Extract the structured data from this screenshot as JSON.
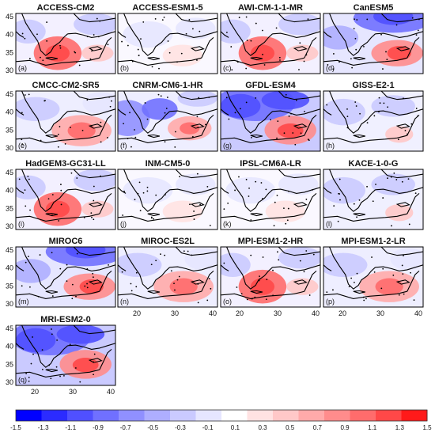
{
  "panels": [
    {
      "title": "ACCESS-CM2",
      "label": "(a)",
      "style": "warm-center"
    },
    {
      "title": "ACCESS-ESM1-5",
      "label": "(b)",
      "style": "neutral"
    },
    {
      "title": "AWI-CM-1-1-MR",
      "label": "(c)",
      "style": "warm-center"
    },
    {
      "title": "CanESM5",
      "label": "(d)",
      "style": "blue-north"
    },
    {
      "title": "CMCC-CM2-SR5",
      "label": "(e)",
      "style": "warm-east"
    },
    {
      "title": "CNRM-CM6-1-HR",
      "label": "(f)",
      "style": "blue-west"
    },
    {
      "title": "GFDL-ESM4",
      "label": "(g)",
      "style": "blue-strong"
    },
    {
      "title": "GISS-E2-1",
      "label": "(h)",
      "style": "light-blue"
    },
    {
      "title": "HadGEM3-GC31-LL",
      "label": "(i)",
      "style": "warm-center"
    },
    {
      "title": "INM-CM5-0",
      "label": "(j)",
      "style": "neutral"
    },
    {
      "title": "IPSL-CM6A-LR",
      "label": "(k)",
      "style": "neutral"
    },
    {
      "title": "KACE-1-0-G",
      "label": "(l)",
      "style": "light-blue"
    },
    {
      "title": "MIROC6",
      "label": "(m)",
      "style": "blue-north"
    },
    {
      "title": "MIROC-ES2L",
      "label": "(n)",
      "style": "warm-east"
    },
    {
      "title": "MPI-ESM1-2-HR",
      "label": "(o)",
      "style": "warm-center"
    },
    {
      "title": "MPI-ESM1-2-LR",
      "label": "(p)",
      "style": "warm-east"
    },
    {
      "title": "MRI-ESM2-0",
      "label": "(q)",
      "style": "blue-strong"
    }
  ],
  "axes": {
    "y_ticks": [
      "45",
      "40",
      "35",
      "30"
    ],
    "x_ticks": [
      "20",
      "30",
      "40"
    ]
  },
  "colorbar": {
    "labels": [
      "-1.5",
      "-1.3",
      "-1.1",
      "-0.9",
      "-0.7",
      "-0.5",
      "-0.3",
      "-0.1",
      "0.1",
      "0.3",
      "0.5",
      "0.7",
      "0.9",
      "1.1",
      "1.3",
      "1.5"
    ],
    "colors": [
      "#0000ff",
      "#2b2bff",
      "#5050ff",
      "#7070ff",
      "#9090ff",
      "#aeaeff",
      "#cacaff",
      "#e6e6ff",
      "#ffffff",
      "#ffe2e2",
      "#ffc8c8",
      "#ffaaaa",
      "#ff8c8c",
      "#ff6c6c",
      "#ff4848",
      "#ff1a1a"
    ]
  }
}
